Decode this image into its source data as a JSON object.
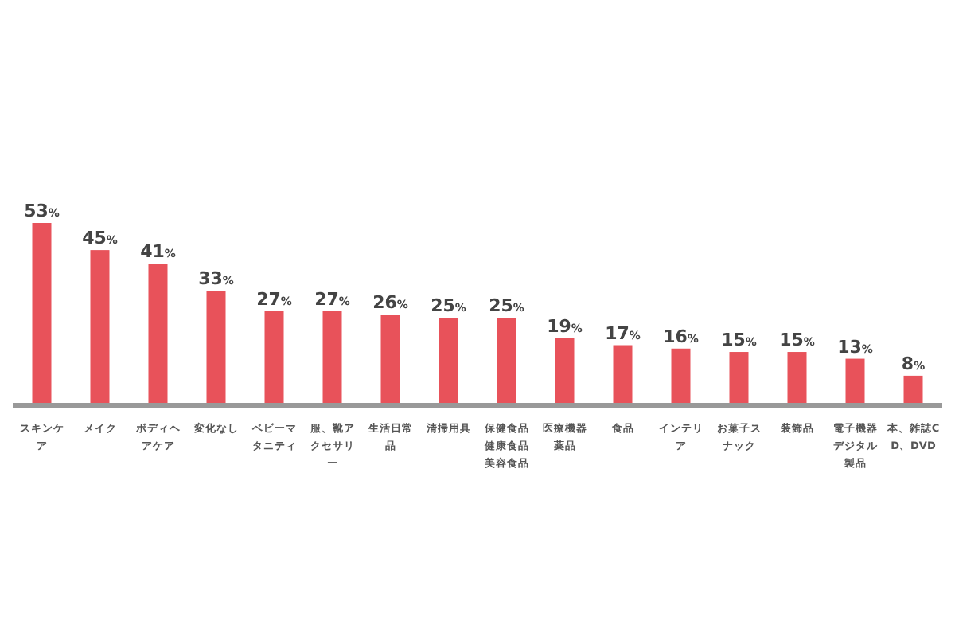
{
  "chart_data": {
    "type": "bar",
    "categories": [
      "スキンケア",
      "メイク",
      "ボディヘアケア",
      "変化なし",
      "ベビーマタニティ",
      "服、靴アクセサリー",
      "生活日常品",
      "清掃用具",
      "保健食品健康食品美容食品",
      "医療機器薬品",
      "食品",
      "インテリア",
      "お菓子スナック",
      "装飾品",
      "電子機器デジタル製品",
      "本、雑誌CD、DVD"
    ],
    "values": [
      53,
      45,
      41,
      33,
      27,
      27,
      26,
      25,
      25,
      19,
      17,
      16,
      15,
      15,
      13,
      8
    ],
    "color": "#e8525a",
    "value_labels": [
      "53%",
      "45%",
      "41%",
      "33%",
      "27%",
      "27%",
      "26%",
      "25%",
      "25%",
      "19%",
      "17%",
      "16%",
      "15%",
      "15%",
      "13%",
      "8%"
    ]
  }
}
